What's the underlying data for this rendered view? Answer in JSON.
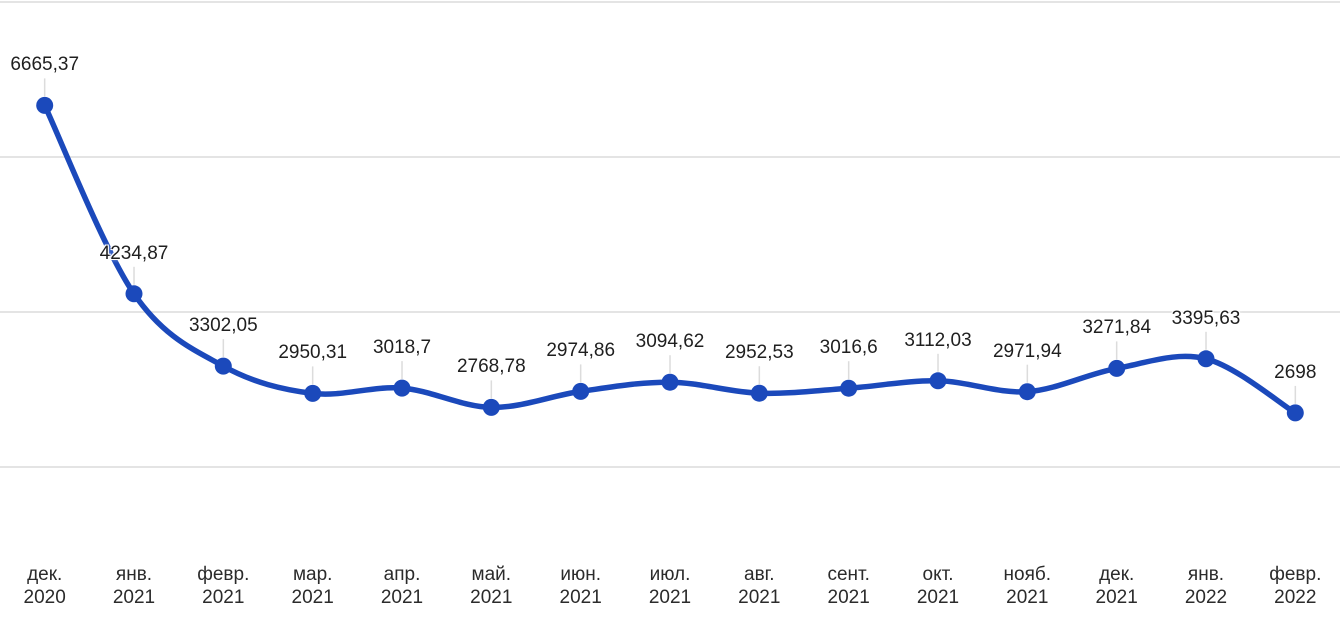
{
  "chart_data": {
    "type": "line",
    "title": "",
    "legend": "none",
    "grid": "horizontal",
    "curve": "smooth",
    "series": [
      {
        "name": "series-1",
        "color": "#1b49bb",
        "values": [
          6665.37,
          4234.87,
          3302.05,
          2950.31,
          3018.7,
          2768.78,
          2974.86,
          3094.62,
          2952.53,
          3016.6,
          3112.03,
          2971.94,
          3271.84,
          3395.63,
          2698
        ],
        "point_labels": [
          "6665,37",
          "4234,87",
          "3302,05",
          "2950,31",
          "3018,7",
          "2768,78",
          "2974,86",
          "3094,62",
          "2952,53",
          "3016,6",
          "3112,03",
          "2971,94",
          "3271,84",
          "3395,63",
          "2698"
        ]
      }
    ],
    "categories": [
      {
        "month": "дек.",
        "year": "2020"
      },
      {
        "month": "янв.",
        "year": "2021"
      },
      {
        "month": "февр.",
        "year": "2021"
      },
      {
        "month": "мар.",
        "year": "2021"
      },
      {
        "month": "апр.",
        "year": "2021"
      },
      {
        "month": "май.",
        "year": "2021"
      },
      {
        "month": "июн.",
        "year": "2021"
      },
      {
        "month": "июл.",
        "year": "2021"
      },
      {
        "month": "авг.",
        "year": "2021"
      },
      {
        "month": "сент.",
        "year": "2021"
      },
      {
        "month": "окт.",
        "year": "2021"
      },
      {
        "month": "нояб.",
        "year": "2021"
      },
      {
        "month": "дек.",
        "year": "2021"
      },
      {
        "month": "янв.",
        "year": "2022"
      },
      {
        "month": "февр.",
        "year": "2022"
      }
    ],
    "xlabel": "",
    "ylabel": "",
    "y_axis_labels_visible": false,
    "y_gridline_values": [
      8000,
      6000,
      4000,
      2000
    ],
    "ylim": [
      800,
      8050
    ]
  },
  "colors": {
    "line": "#1b49bb",
    "point": "#1b49bb",
    "gridline": "#dcdcdc",
    "leader_stem": "#dcdcdc",
    "label_text": "#1f1f1f",
    "axis_text": "#2b2b2b",
    "background": "#ffffff"
  }
}
